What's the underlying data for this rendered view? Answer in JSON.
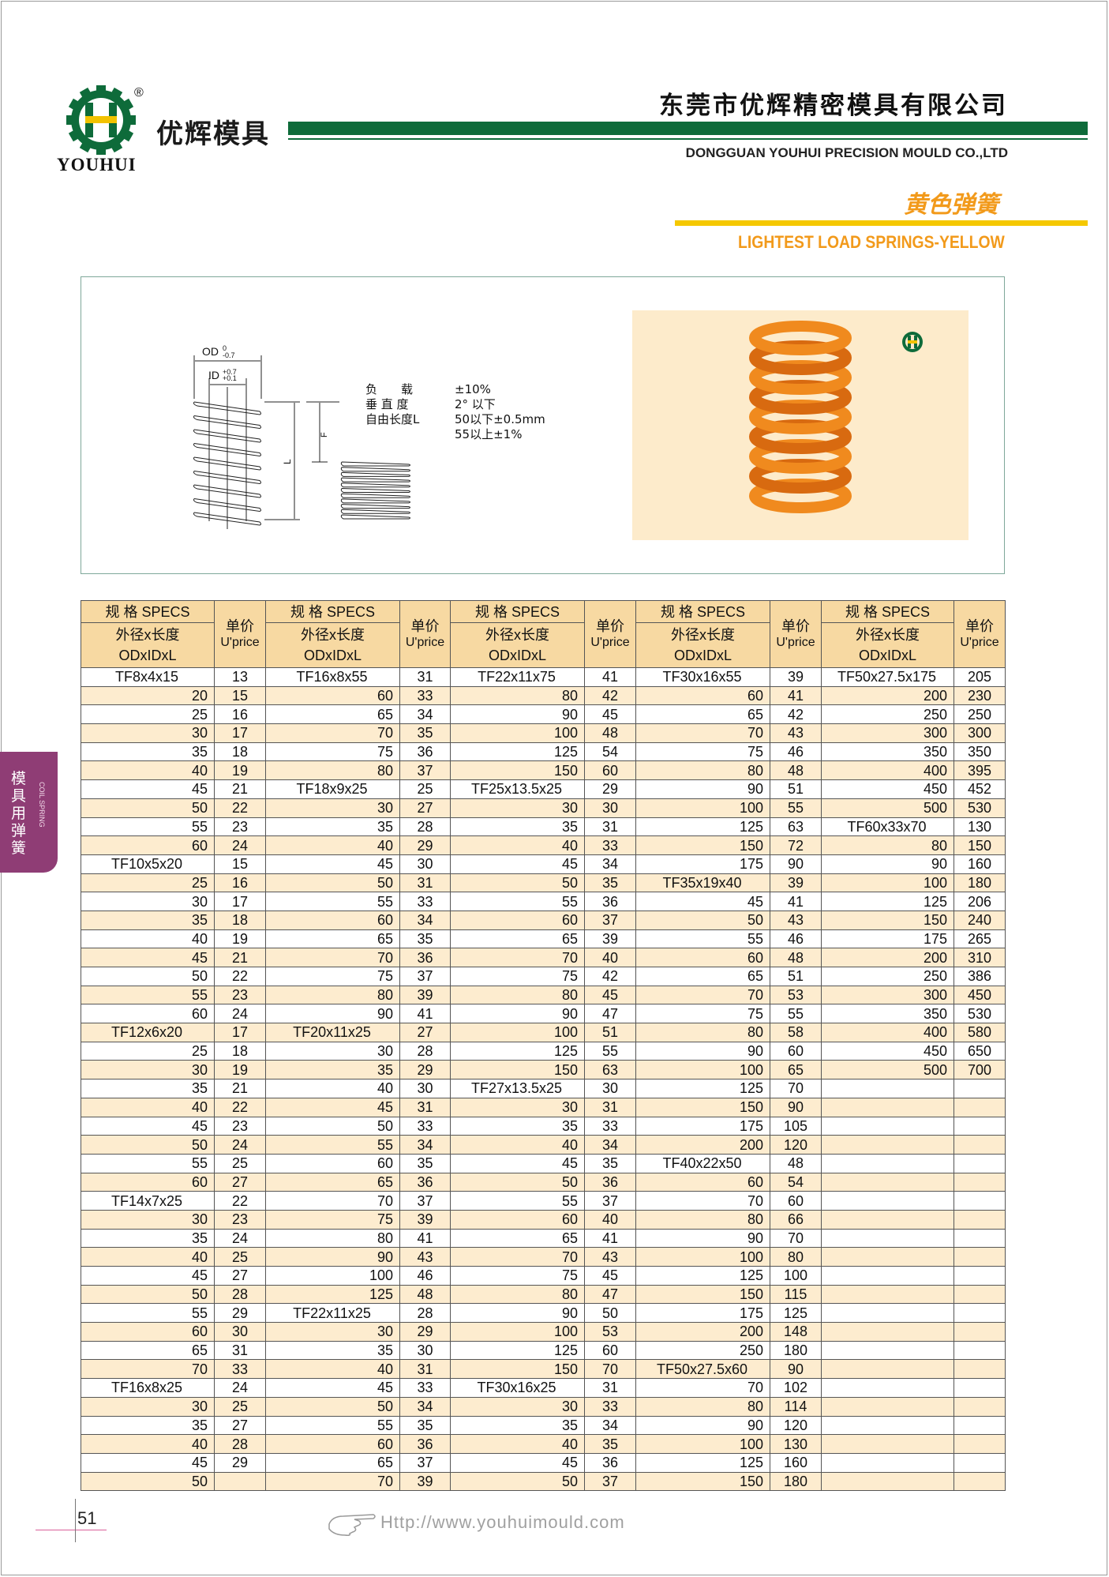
{
  "header": {
    "brand_cn": "优辉模具",
    "brand_en": "YOUHUI",
    "company_cn": "东莞市优辉精密模具有限公司",
    "company_en": "DONGGUAN YOUHUI PRECISION MOULD CO.,LTD",
    "category_cn": "黄色弹簧",
    "category_en": "LIGHTEST LOAD SPRINGS-YELLOW",
    "registered": "®",
    "accent_green": "#0e6b3a",
    "accent_orange": "#f29a1b",
    "accent_yellow": "#f5c800"
  },
  "figure": {
    "od_label": "OD",
    "od_tol_upper": "0",
    "od_tol_lower": "-0.7",
    "id_label": "ID",
    "id_tol_upper": "+0.7",
    "id_tol_lower": "+0.1",
    "l_label": "L",
    "f_label": "F",
    "specs": [
      {
        "k": "负　　载",
        "v": "±10%"
      },
      {
        "k": "垂 直 度",
        "v": "2°  以下"
      },
      {
        "k": "自由长度L",
        "v": "50以下±0.5mm"
      },
      {
        "k": "",
        "v": "55以上±1%"
      }
    ]
  },
  "side_tab": {
    "cn": "模具用弹簧",
    "en": "COIL SPRING"
  },
  "table": {
    "spec_header": "规 格 SPECS",
    "dim_header_cn": "外径x长度",
    "dim_header_en": "ODxIDxL",
    "price_header_cn": "单价",
    "price_header_en": "U'price",
    "groups": [
      [
        [
          "TF8x4x15",
          "13"
        ],
        [
          "20",
          "15"
        ],
        [
          "25",
          "16"
        ],
        [
          "30",
          "17"
        ],
        [
          "35",
          "18"
        ],
        [
          "40",
          "19"
        ],
        [
          "45",
          "21"
        ],
        [
          "50",
          "22"
        ],
        [
          "55",
          "23"
        ],
        [
          "60",
          "24"
        ],
        [
          "TF10x5x20",
          "15"
        ],
        [
          "25",
          "16"
        ],
        [
          "30",
          "17"
        ],
        [
          "35",
          "18"
        ],
        [
          "40",
          "19"
        ],
        [
          "45",
          "21"
        ],
        [
          "50",
          "22"
        ],
        [
          "55",
          "23"
        ],
        [
          "60",
          "24"
        ],
        [
          "TF12x6x20",
          "17"
        ],
        [
          "25",
          "18"
        ],
        [
          "30",
          "19"
        ],
        [
          "35",
          "21"
        ],
        [
          "40",
          "22"
        ],
        [
          "45",
          "23"
        ],
        [
          "50",
          "24"
        ],
        [
          "55",
          "25"
        ],
        [
          "60",
          "27"
        ],
        [
          "TF14x7x25",
          "22"
        ],
        [
          "30",
          "23"
        ],
        [
          "35",
          "24"
        ],
        [
          "40",
          "25"
        ],
        [
          "45",
          "27"
        ],
        [
          "50",
          "28"
        ],
        [
          "55",
          "29"
        ],
        [
          "60",
          "30"
        ],
        [
          "65",
          "31"
        ],
        [
          "70",
          "33"
        ],
        [
          "TF16x8x25",
          "24"
        ],
        [
          "30",
          "25"
        ],
        [
          "35",
          "27"
        ],
        [
          "40",
          "28"
        ],
        [
          "45",
          "29"
        ],
        [
          "50",
          ""
        ]
      ],
      [
        [
          "TF16x8x55",
          "31"
        ],
        [
          "60",
          "33"
        ],
        [
          "65",
          "34"
        ],
        [
          "70",
          "35"
        ],
        [
          "75",
          "36"
        ],
        [
          "80",
          "37"
        ],
        [
          "TF18x9x25",
          "25"
        ],
        [
          "30",
          "27"
        ],
        [
          "35",
          "28"
        ],
        [
          "40",
          "29"
        ],
        [
          "45",
          "30"
        ],
        [
          "50",
          "31"
        ],
        [
          "55",
          "33"
        ],
        [
          "60",
          "34"
        ],
        [
          "65",
          "35"
        ],
        [
          "70",
          "36"
        ],
        [
          "75",
          "37"
        ],
        [
          "80",
          "39"
        ],
        [
          "90",
          "41"
        ],
        [
          "TF20x11x25",
          "27"
        ],
        [
          "30",
          "28"
        ],
        [
          "35",
          "29"
        ],
        [
          "40",
          "30"
        ],
        [
          "45",
          "31"
        ],
        [
          "50",
          "33"
        ],
        [
          "55",
          "34"
        ],
        [
          "60",
          "35"
        ],
        [
          "65",
          "36"
        ],
        [
          "70",
          "37"
        ],
        [
          "75",
          "39"
        ],
        [
          "80",
          "41"
        ],
        [
          "90",
          "43"
        ],
        [
          "100",
          "46"
        ],
        [
          "125",
          "48"
        ],
        [
          "TF22x11x25",
          "28"
        ],
        [
          "30",
          "29"
        ],
        [
          "35",
          "30"
        ],
        [
          "40",
          "31"
        ],
        [
          "45",
          "33"
        ],
        [
          "50",
          "34"
        ],
        [
          "55",
          "35"
        ],
        [
          "60",
          "36"
        ],
        [
          "65",
          "37"
        ],
        [
          "70",
          "39"
        ]
      ],
      [
        [
          "TF22x11x75",
          "41"
        ],
        [
          "80",
          "42"
        ],
        [
          "90",
          "45"
        ],
        [
          "100",
          "48"
        ],
        [
          "125",
          "54"
        ],
        [
          "150",
          "60"
        ],
        [
          "TF25x13.5x25",
          "29"
        ],
        [
          "30",
          "30"
        ],
        [
          "35",
          "31"
        ],
        [
          "40",
          "33"
        ],
        [
          "45",
          "34"
        ],
        [
          "50",
          "35"
        ],
        [
          "55",
          "36"
        ],
        [
          "60",
          "37"
        ],
        [
          "65",
          "39"
        ],
        [
          "70",
          "40"
        ],
        [
          "75",
          "42"
        ],
        [
          "80",
          "45"
        ],
        [
          "90",
          "47"
        ],
        [
          "100",
          "51"
        ],
        [
          "125",
          "55"
        ],
        [
          "150",
          "63"
        ],
        [
          "TF27x13.5x25",
          "30"
        ],
        [
          "30",
          "31"
        ],
        [
          "35",
          "33"
        ],
        [
          "40",
          "34"
        ],
        [
          "45",
          "35"
        ],
        [
          "50",
          "36"
        ],
        [
          "55",
          "37"
        ],
        [
          "60",
          "40"
        ],
        [
          "65",
          "41"
        ],
        [
          "70",
          "43"
        ],
        [
          "75",
          "45"
        ],
        [
          "80",
          "47"
        ],
        [
          "90",
          "50"
        ],
        [
          "100",
          "53"
        ],
        [
          "125",
          "60"
        ],
        [
          "150",
          "70"
        ],
        [
          "TF30x16x25",
          "31"
        ],
        [
          "30",
          "33"
        ],
        [
          "35",
          "34"
        ],
        [
          "40",
          "35"
        ],
        [
          "45",
          "36"
        ],
        [
          "50",
          "37"
        ]
      ],
      [
        [
          "TF30x16x55",
          "39"
        ],
        [
          "60",
          "41"
        ],
        [
          "65",
          "42"
        ],
        [
          "70",
          "43"
        ],
        [
          "75",
          "46"
        ],
        [
          "80",
          "48"
        ],
        [
          "90",
          "51"
        ],
        [
          "100",
          "55"
        ],
        [
          "125",
          "63"
        ],
        [
          "150",
          "72"
        ],
        [
          "175",
          "90"
        ],
        [
          "TF35x19x40",
          "39"
        ],
        [
          "45",
          "41"
        ],
        [
          "50",
          "43"
        ],
        [
          "55",
          "46"
        ],
        [
          "60",
          "48"
        ],
        [
          "65",
          "51"
        ],
        [
          "70",
          "53"
        ],
        [
          "75",
          "55"
        ],
        [
          "80",
          "58"
        ],
        [
          "90",
          "60"
        ],
        [
          "100",
          "65"
        ],
        [
          "125",
          "70"
        ],
        [
          "150",
          "90"
        ],
        [
          "175",
          "105"
        ],
        [
          "200",
          "120"
        ],
        [
          "TF40x22x50",
          "48"
        ],
        [
          "60",
          "54"
        ],
        [
          "70",
          "60"
        ],
        [
          "80",
          "66"
        ],
        [
          "90",
          "70"
        ],
        [
          "100",
          "80"
        ],
        [
          "125",
          "100"
        ],
        [
          "150",
          "115"
        ],
        [
          "175",
          "125"
        ],
        [
          "200",
          "148"
        ],
        [
          "250",
          "180"
        ],
        [
          "TF50x27.5x60",
          "90"
        ],
        [
          "70",
          "102"
        ],
        [
          "80",
          "114"
        ],
        [
          "90",
          "120"
        ],
        [
          "100",
          "130"
        ],
        [
          "125",
          "160"
        ],
        [
          "150",
          "180"
        ]
      ],
      [
        [
          "TF50x27.5x175",
          "205"
        ],
        [
          "200",
          "230"
        ],
        [
          "250",
          "250"
        ],
        [
          "300",
          "300"
        ],
        [
          "350",
          "350"
        ],
        [
          "400",
          "395"
        ],
        [
          "450",
          "452"
        ],
        [
          "500",
          "530"
        ],
        [
          "TF60x33x70",
          "130"
        ],
        [
          "80",
          "150"
        ],
        [
          "90",
          "160"
        ],
        [
          "100",
          "180"
        ],
        [
          "125",
          "206"
        ],
        [
          "150",
          "240"
        ],
        [
          "175",
          "265"
        ],
        [
          "200",
          "310"
        ],
        [
          "250",
          "386"
        ],
        [
          "300",
          "450"
        ],
        [
          "350",
          "530"
        ],
        [
          "400",
          "580"
        ],
        [
          "450",
          "650"
        ],
        [
          "500",
          "700"
        ]
      ]
    ]
  },
  "footer": {
    "page_number": "51",
    "url": "Http://www.youhuimould.com"
  }
}
